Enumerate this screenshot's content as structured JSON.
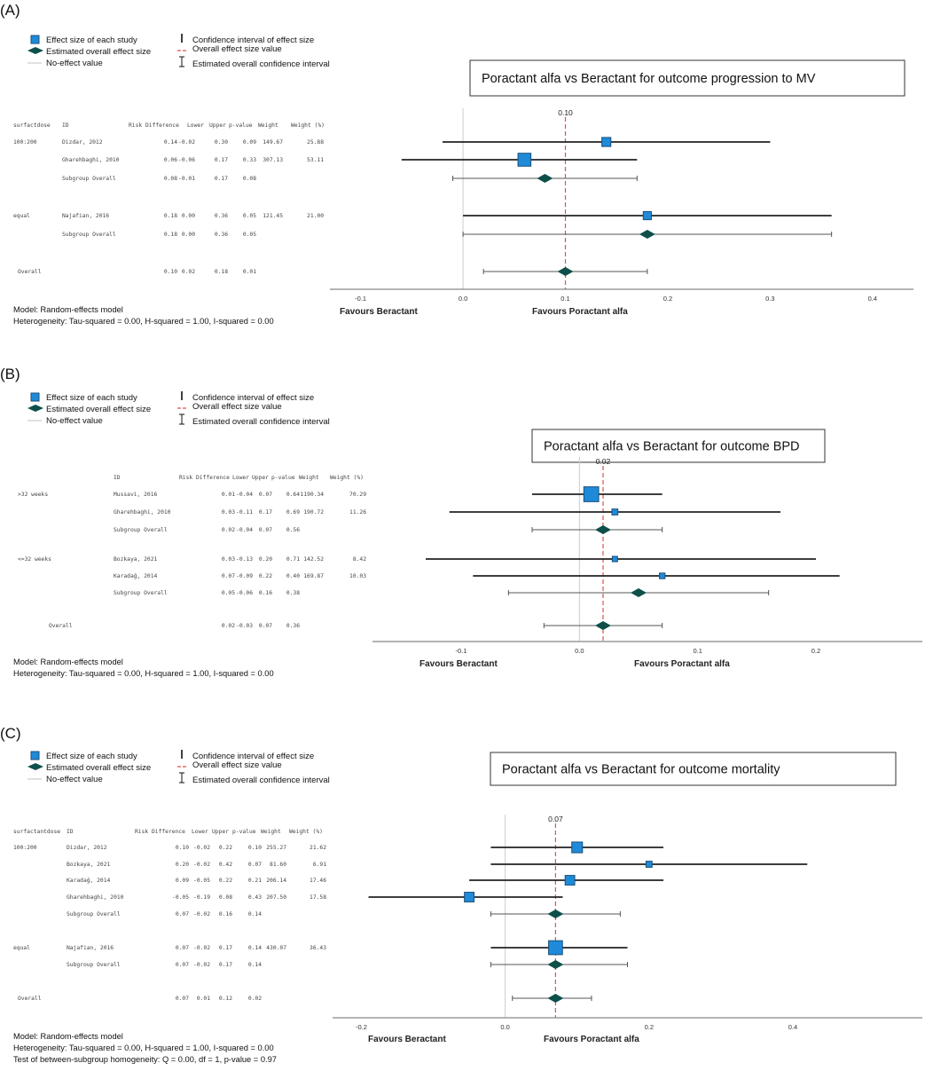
{
  "colors": {
    "study_marker": "#1f8ad8",
    "study_marker_edge": "#1b4f7a",
    "diamond": "#0e4f4a",
    "overall_line": "#d9534f",
    "ci_line": "#222222",
    "null_line": "#cccccc"
  },
  "chart_data": [
    {
      "type": "forest",
      "panel_label": "(A)",
      "title": "Poractant alfa vs Beractant for outcome progression to MV",
      "legend": {
        "effect": "Effect size of each study",
        "overall_effect": "Estimated overall effect size",
        "no_effect": "No-effect value",
        "ci": "Confidence interval of effect size",
        "overall_value": "Overall effect size value",
        "overall_ci": "Estimated overall confidence interval"
      },
      "columns": [
        "surfactdose",
        "ID",
        "Risk Difference",
        "Lower",
        "Upper",
        "p-value",
        "Weight",
        "Weight (%)"
      ],
      "rows": [
        {
          "kind": "study",
          "group": "100:200",
          "id": "Dizdar, 2012",
          "rd": "0.14",
          "lower": "-0.02",
          "upper": "0.30",
          "p": "0.09",
          "weight": "149.67",
          "weight_pct": "25.88"
        },
        {
          "kind": "study",
          "group": "",
          "id": "Gharehbaghi, 2010",
          "rd": "0.06",
          "lower": "-0.06",
          "upper": "0.17",
          "p": "0.33",
          "weight": "307.13",
          "weight_pct": "53.11"
        },
        {
          "kind": "subgroup",
          "group": "",
          "id": "Subgroup Overall",
          "rd": "0.08",
          "lower": "-0.01",
          "upper": "0.17",
          "p": "0.08",
          "weight": "",
          "weight_pct": ""
        },
        {
          "kind": "study",
          "group": "equal",
          "id": "Najafian, 2016",
          "rd": "0.18",
          "lower": "0.00",
          "upper": "0.36",
          "p": "0.05",
          "weight": "121.45",
          "weight_pct": "21.00"
        },
        {
          "kind": "subgroup",
          "group": "",
          "id": "Subgroup Overall",
          "rd": "0.18",
          "lower": "0.00",
          "upper": "0.36",
          "p": "0.05",
          "weight": "",
          "weight_pct": ""
        },
        {
          "kind": "overall",
          "group": "Overall",
          "id": "",
          "rd": "0.10",
          "lower": "0.02",
          "upper": "0.18",
          "p": "0.01",
          "weight": "",
          "weight_pct": ""
        }
      ],
      "overall_value": 0.1,
      "overall_value_label": "0.10",
      "null_value": 0,
      "xticks": [
        "-0.1",
        "0.0",
        "0.1",
        "0.2",
        "0.3",
        "0.4"
      ],
      "xlim": [
        -0.13,
        0.44
      ],
      "xlabel_left": "Favours Beractant",
      "xlabel_right": "Favours Poractant alfa",
      "notes": [
        "Model: Random-effects model",
        "Heterogeneity: Tau-squared = 0.00, H-squared = 1.00, I-squared = 0.00"
      ]
    },
    {
      "type": "forest",
      "panel_label": "(B)",
      "title": "Poractant alfa vs Beractant for outcome BPD",
      "legend": {
        "effect": "Effect size of each study",
        "overall_effect": "Estimated overall effect size",
        "no_effect": "No-effect value",
        "ci": "Confidence interval of effect size",
        "overall_value": "Overall effect size value",
        "overall_ci": "Estimated overall confidence interval"
      },
      "columns": [
        "",
        "ID",
        "Risk Difference",
        "Lower",
        "Upper",
        "p-value",
        "Weight",
        "Weight (%)"
      ],
      "rows": [
        {
          "kind": "study",
          "group": ">32 weeks",
          "id": "Mussavi, 2016",
          "rd": "0.01",
          "lower": "-0.04",
          "upper": "0.07",
          "p": "0.64",
          "weight": "1190.34",
          "weight_pct": "70.29"
        },
        {
          "kind": "study",
          "group": "",
          "id": "Gharehbaghi, 2010",
          "rd": "0.03",
          "lower": "-0.11",
          "upper": "0.17",
          "p": "0.69",
          "weight": "190.72",
          "weight_pct": "11.26"
        },
        {
          "kind": "subgroup",
          "group": "",
          "id": "Subgroup Overall",
          "rd": "0.02",
          "lower": "-0.04",
          "upper": "0.07",
          "p": "0.56",
          "weight": "",
          "weight_pct": ""
        },
        {
          "kind": "study",
          "group": "<=32 weeks",
          "id": "Bozkaya, 2021",
          "rd": "0.03",
          "lower": "-0.13",
          "upper": "0.20",
          "p": "0.71",
          "weight": "142.52",
          "weight_pct": "8.42"
        },
        {
          "kind": "study",
          "group": "",
          "id": "Karadağ, 2014",
          "rd": "0.07",
          "lower": "-0.09",
          "upper": "0.22",
          "p": "0.40",
          "weight": "169.87",
          "weight_pct": "10.03"
        },
        {
          "kind": "subgroup",
          "group": "",
          "id": "Subgroup Overall",
          "rd": "0.05",
          "lower": "-0.06",
          "upper": "0.16",
          "p": "0.38",
          "weight": "",
          "weight_pct": ""
        },
        {
          "kind": "overall",
          "group": "Overall",
          "id": "",
          "rd": "0.02",
          "lower": "-0.03",
          "upper": "0.07",
          "p": "0.36",
          "weight": "",
          "weight_pct": ""
        }
      ],
      "overall_value": 0.02,
      "overall_value_label": "0.02",
      "null_value": 0,
      "xticks": [
        "-0.1",
        "0.0",
        "0.1",
        "0.2"
      ],
      "xlim": [
        -0.175,
        0.29
      ],
      "xlabel_left": "Favours Beractant",
      "xlabel_right": "Favours Poractant alfa",
      "notes": [
        "Model: Random-effects model",
        "Heterogeneity: Tau-squared = 0.00, H-squared = 1.00, I-squared = 0.00"
      ]
    },
    {
      "type": "forest",
      "panel_label": "(C)",
      "title": "Poractant alfa vs Beractant for outcome mortality",
      "legend": {
        "effect": "Effect size of each study",
        "overall_effect": "Estimated overall effect size",
        "no_effect": "No-effect value",
        "ci": "Confidence interval of effect size",
        "overall_value": "Overall effect size value",
        "overall_ci": "Estimated overall confidence interval"
      },
      "columns": [
        "surfactantdose",
        "ID",
        "Risk Difference",
        "Lower",
        "Upper",
        "p-value",
        "Weight",
        "Weight (%)"
      ],
      "rows": [
        {
          "kind": "study",
          "group": "100:200",
          "id": "Dizdar, 2012",
          "rd": "0.10",
          "lower": "-0.02",
          "upper": "0.22",
          "p": "0.10",
          "weight": "255.27",
          "weight_pct": "21.62"
        },
        {
          "kind": "study",
          "group": "",
          "id": "Bozkaya, 2021",
          "rd": "0.20",
          "lower": "-0.02",
          "upper": "0.42",
          "p": "0.07",
          "weight": "81.60",
          "weight_pct": "6.91"
        },
        {
          "kind": "study",
          "group": "",
          "id": "Karadağ, 2014",
          "rd": "0.09",
          "lower": "-0.05",
          "upper": "0.22",
          "p": "0.21",
          "weight": "206.14",
          "weight_pct": "17.46"
        },
        {
          "kind": "study",
          "group": "",
          "id": "Gharehbaghi, 2010",
          "rd": "-0.05",
          "lower": "-0.19",
          "upper": "0.08",
          "p": "0.43",
          "weight": "207.50",
          "weight_pct": "17.58"
        },
        {
          "kind": "subgroup",
          "group": "",
          "id": "Subgroup Overall",
          "rd": "0.07",
          "lower": "-0.02",
          "upper": "0.16",
          "p": "0.14",
          "weight": "",
          "weight_pct": ""
        },
        {
          "kind": "study",
          "group": "equal",
          "id": "Najafian, 2016",
          "rd": "0.07",
          "lower": "-0.02",
          "upper": "0.17",
          "p": "0.14",
          "weight": "430.07",
          "weight_pct": "36.43"
        },
        {
          "kind": "subgroup",
          "group": "",
          "id": "Subgroup Overall",
          "rd": "0.07",
          "lower": "-0.02",
          "upper": "0.17",
          "p": "0.14",
          "weight": "",
          "weight_pct": ""
        },
        {
          "kind": "overall",
          "group": "Overall",
          "id": "",
          "rd": "0.07",
          "lower": "0.01",
          "upper": "0.12",
          "p": "0.02",
          "weight": "",
          "weight_pct": ""
        }
      ],
      "overall_value": 0.07,
      "overall_value_label": "0.07",
      "null_value": 0,
      "xticks": [
        "-0.2",
        "0.0",
        "0.2",
        "0.4"
      ],
      "xlim": [
        -0.24,
        0.58
      ],
      "xlabel_left": "Favours Beractant",
      "xlabel_right": "Favours Poractant alfa",
      "notes": [
        "Model: Random-effects model",
        "Heterogeneity: Tau-squared = 0.00, H-squared = 1.00, I-squared = 0.00",
        "Test of between-subgroup homogeneity: Q = 0.00, df = 1, p-value = 0.97"
      ]
    }
  ]
}
